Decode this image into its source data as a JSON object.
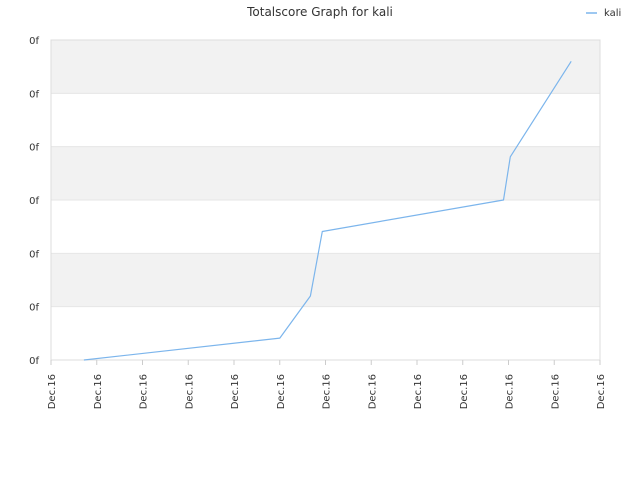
{
  "chart_data": {
    "type": "line",
    "title": "Totalscore Graph for kali",
    "xlabel": "",
    "ylabel": "",
    "legend": {
      "placement": "top-right",
      "entries": [
        "kali"
      ]
    },
    "x_tick_labels": [
      "Dec.16",
      "Dec.16",
      "Dec.16",
      "Dec.16",
      "Dec.16",
      "Dec.16",
      "Dec.16",
      "Dec.16",
      "Dec.16",
      "Dec.16",
      "Dec.16",
      "Dec.16",
      "Dec.16"
    ],
    "y_tick_labels": [
      "0f",
      "0f",
      "0f",
      "0f",
      "0f",
      "0f",
      "0f"
    ],
    "x_range": [
      0,
      12
    ],
    "y_range": [
      0,
      6
    ],
    "grid": true,
    "band_colors": [
      "#ffffff",
      "#f2f2f2"
    ],
    "series": [
      {
        "name": "kali",
        "color": "#7cb5ec",
        "points": [
          [
            0.72,
            0.0
          ],
          [
            5.0,
            0.41
          ],
          [
            5.67,
            1.2
          ],
          [
            5.93,
            2.41
          ],
          [
            9.89,
            3.0
          ],
          [
            10.04,
            3.81
          ],
          [
            11.37,
            5.6
          ]
        ]
      }
    ]
  }
}
